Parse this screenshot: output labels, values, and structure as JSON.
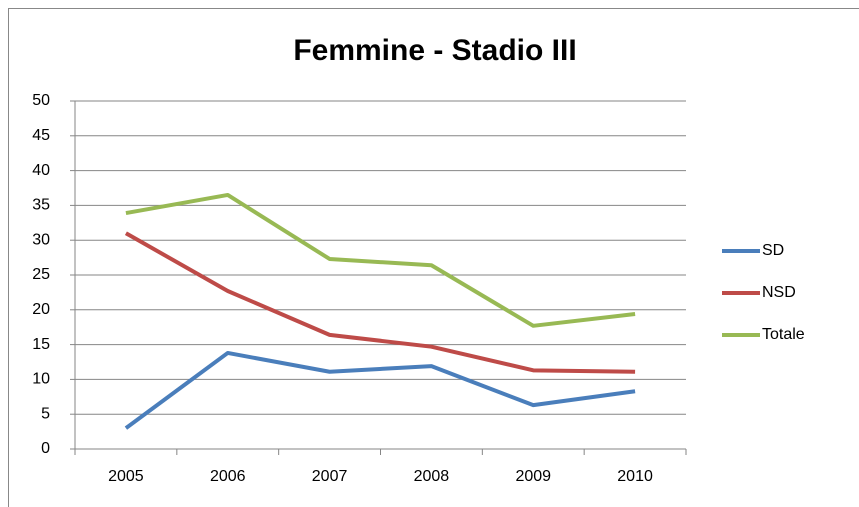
{
  "chart_data": {
    "type": "line",
    "title": "Femmine - Stadio III",
    "categories": [
      "2005",
      "2006",
      "2007",
      "2008",
      "2009",
      "2010"
    ],
    "series": [
      {
        "name": "SD",
        "color": "#4a7ebb",
        "values": [
          3.0,
          13.8,
          11.1,
          11.9,
          6.3,
          8.3
        ]
      },
      {
        "name": "NSD",
        "color": "#be4b48",
        "values": [
          31.0,
          22.7,
          16.4,
          14.7,
          11.3,
          11.1
        ]
      },
      {
        "name": "Totale",
        "color": "#98b954",
        "values": [
          33.9,
          36.5,
          27.3,
          26.4,
          17.7,
          19.4
        ]
      }
    ],
    "ylim": [
      0,
      50
    ],
    "yticks": [
      0,
      5,
      10,
      15,
      20,
      25,
      30,
      35,
      40,
      45,
      50
    ],
    "grid": true,
    "legend": "right"
  }
}
